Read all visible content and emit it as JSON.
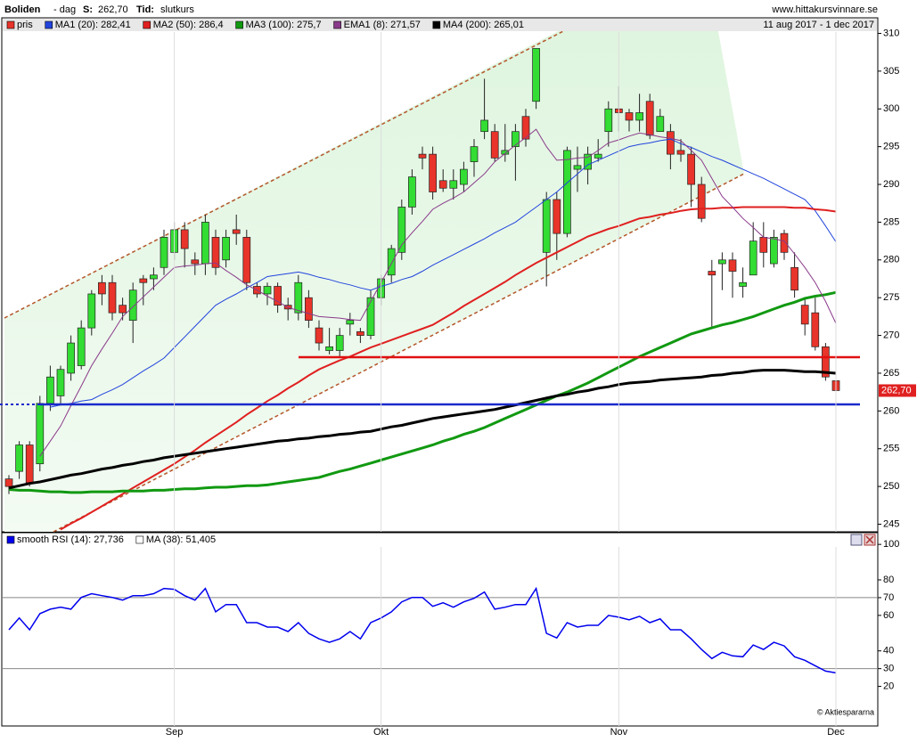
{
  "header": {
    "name": "Boliden",
    "period": "- dag",
    "s_label": "S:",
    "s_value": "262,70",
    "t_label": "Tid:",
    "t_value": "slutkurs",
    "site": "www.hittakursvinnare.se",
    "range": "11 aug 2017 - 1 dec 2017"
  },
  "chart_data": [
    {
      "type": "candlestick",
      "candle_name": "pris",
      "candle_color": "#e8342a",
      "up_color": "#33dd33",
      "down_color": "#e8342a",
      "last_label": "262,70",
      "ylim": [
        244,
        311
      ],
      "yticks": [
        245,
        250,
        255,
        260,
        265,
        270,
        275,
        280,
        285,
        290,
        295,
        300,
        305,
        310
      ],
      "open": [
        251,
        252,
        255.5,
        253,
        261,
        262,
        265,
        266,
        271,
        277,
        277,
        274,
        272,
        277.5,
        277.5,
        279,
        281,
        284,
        280,
        279.5,
        283,
        280,
        284,
        283,
        276.5,
        275.5,
        276.5,
        274,
        273,
        275,
        271,
        268,
        268,
        271.5,
        270.5,
        270,
        275,
        278,
        281,
        287,
        294,
        294,
        290.5,
        289.5,
        290,
        293,
        297,
        297,
        294,
        295,
        299,
        301,
        281,
        288,
        283.5,
        292,
        292,
        293.5,
        297,
        300,
        299.5,
        298.5,
        301,
        297,
        297,
        294.5,
        294,
        290,
        278.5,
        279.5,
        280,
        276.5,
        278,
        283,
        279.5,
        283.5,
        279,
        274,
        273,
        268.5,
        264
      ],
      "high": [
        251.5,
        256,
        256,
        262,
        266,
        266,
        270,
        272,
        276,
        278,
        278,
        275,
        277,
        278,
        279,
        284,
        285,
        285,
        281,
        286,
        284,
        284,
        286,
        284,
        277,
        277,
        277,
        275,
        278,
        276,
        272,
        271,
        271,
        273,
        271,
        276,
        278,
        282,
        288,
        292,
        295,
        295,
        292,
        292,
        293,
        296,
        304,
        298,
        298,
        298,
        300,
        308,
        289,
        289,
        295,
        295,
        295,
        296,
        301,
        303,
        300,
        302,
        302,
        300,
        298,
        296,
        295,
        291,
        280,
        281,
        281,
        279,
        285,
        285,
        284,
        284,
        281,
        275,
        275,
        269,
        266
      ],
      "low": [
        249,
        251,
        250,
        252,
        260,
        261,
        264,
        265.5,
        270,
        274,
        272,
        272,
        269,
        274,
        276,
        278,
        280,
        279,
        278,
        278,
        278,
        279,
        282,
        276,
        275,
        274,
        273,
        272,
        272,
        271,
        268,
        267.5,
        267,
        270,
        269,
        269.5,
        274,
        277,
        280,
        286,
        292,
        288,
        289,
        288,
        289,
        291,
        296,
        293,
        293,
        290.5,
        295,
        300,
        276.5,
        280,
        283,
        289,
        290,
        293,
        295,
        297,
        297,
        297,
        296,
        297,
        292,
        293,
        287,
        285,
        271,
        276,
        275,
        275,
        278,
        279,
        279,
        280,
        275,
        270,
        268,
        264,
        261
      ],
      "close": [
        250,
        255.5,
        250.5,
        261,
        264.5,
        265.5,
        269,
        271,
        275.5,
        275.5,
        273,
        273,
        276,
        277,
        278,
        283,
        284,
        281.5,
        279.5,
        285,
        279,
        283,
        283.5,
        277,
        275.5,
        276.5,
        274,
        273.5,
        277,
        272,
        269,
        268.5,
        270,
        272,
        270,
        275,
        277.5,
        281.5,
        287,
        291,
        293.5,
        289,
        289.5,
        290.5,
        292,
        295,
        298.5,
        293.5,
        294.5,
        297,
        296,
        308,
        288,
        283.5,
        294.5,
        292.5,
        294,
        294,
        300,
        299.5,
        298.5,
        299.5,
        296.5,
        299,
        294,
        294,
        290,
        285.5,
        278,
        280,
        278.5,
        277,
        282.5,
        281,
        283,
        281,
        276,
        271.5,
        268.5,
        264.5,
        262.7
      ],
      "series": [
        {
          "name": "MA1 (20): 282,41",
          "color": "#2244dd",
          "line_width": 1,
          "values": [
            null,
            null,
            null,
            null,
            260.5,
            260.8,
            261.0,
            261.3,
            261.5,
            262.2,
            262.8,
            263.5,
            264.4,
            265.3,
            266.1,
            267.0,
            268.4,
            269.8,
            271.2,
            272.6,
            274.0,
            274.8,
            275.5,
            276.3,
            277.0,
            277.8,
            278.0,
            278.2,
            278.4,
            278.1,
            277.7,
            277.4,
            277.0,
            276.7,
            276.3,
            276.0,
            276.5,
            276.9,
            277.4,
            277.8,
            278.5,
            279.3,
            280.0,
            280.7,
            281.4,
            282.1,
            282.8,
            283.6,
            284.3,
            285.0,
            286.0,
            287.0,
            288.0,
            289.0,
            290.2,
            291.4,
            292.6,
            293.2,
            293.8,
            294.4,
            295.0,
            295.3,
            295.5,
            295.8,
            296.0,
            295.4,
            294.9,
            294.3,
            293.7,
            293.2,
            292.6,
            292.0,
            291.4,
            290.8,
            290.1,
            289.4,
            288.7,
            288.0,
            286.5,
            284.5,
            282.4
          ]
        },
        {
          "name": "MA2 (50): 286,4",
          "color": "#e02020",
          "line_width": 2,
          "values": [
            null,
            null,
            null,
            null,
            null,
            244.3,
            245.1,
            245.8,
            246.6,
            247.4,
            248.2,
            249.0,
            249.8,
            250.6,
            251.4,
            252.2,
            253.0,
            253.9,
            254.8,
            255.8,
            256.7,
            257.6,
            258.5,
            259.5,
            260.4,
            261.3,
            262.1,
            263.0,
            263.8,
            264.7,
            265.5,
            266.1,
            266.7,
            267.2,
            267.8,
            268.4,
            268.9,
            269.4,
            269.9,
            270.4,
            270.9,
            271.4,
            272.2,
            273.0,
            273.9,
            274.7,
            275.5,
            276.3,
            277.1,
            278.0,
            278.8,
            279.6,
            280.3,
            281.0,
            281.7,
            282.4,
            283.1,
            283.6,
            284.1,
            284.5,
            285.0,
            285.5,
            285.7,
            286.0,
            286.2,
            286.5,
            286.7,
            286.8,
            286.8,
            286.9,
            286.9,
            287.0,
            287.0,
            287.0,
            287.0,
            287.0,
            286.9,
            286.9,
            286.7,
            286.6,
            286.4
          ]
        },
        {
          "name": "MA3 (100): 275,7",
          "color": "#119911",
          "line_width": 3,
          "values": [
            249.6,
            249.5,
            249.5,
            249.4,
            249.3,
            249.3,
            249.2,
            249.2,
            249.3,
            249.3,
            249.3,
            249.4,
            249.4,
            249.4,
            249.5,
            249.5,
            249.6,
            249.7,
            249.7,
            249.8,
            249.9,
            249.9,
            250.0,
            250.1,
            250.1,
            250.2,
            250.4,
            250.6,
            250.8,
            251.0,
            251.2,
            251.6,
            252.0,
            252.3,
            252.7,
            253.1,
            253.5,
            253.9,
            254.3,
            254.7,
            255.1,
            255.5,
            256.0,
            256.4,
            256.9,
            257.3,
            257.8,
            258.4,
            259.0,
            259.6,
            260.2,
            260.8,
            261.4,
            262.0,
            262.5,
            263.1,
            263.7,
            264.4,
            265.1,
            265.8,
            266.5,
            267.2,
            267.8,
            268.4,
            269.0,
            269.6,
            270.2,
            270.6,
            271.0,
            271.4,
            271.7,
            272.1,
            272.5,
            273.0,
            273.5,
            274.0,
            274.4,
            274.9,
            275.2,
            275.4,
            275.7
          ]
        },
        {
          "name": "EMA1 (8): 271,57",
          "color": "#8a3a8a",
          "line_width": 1,
          "values": [
            null,
            null,
            null,
            254.0,
            256.0,
            258.0,
            260.7,
            263.3,
            266.0,
            268.2,
            270.3,
            272.5,
            273.8,
            275.1,
            276.4,
            277.7,
            279.0,
            279.2,
            279.3,
            279.5,
            279.6,
            278.6,
            277.7,
            276.7,
            276.0,
            275.2,
            274.5,
            273.7,
            273.3,
            272.9,
            272.5,
            272.4,
            272.3,
            272.1,
            272.0,
            274.5,
            277.0,
            279.5,
            282.0,
            283.6,
            285.1,
            286.7,
            287.5,
            288.2,
            289.0,
            290.2,
            291.4,
            293.0,
            294.1,
            295.2,
            296.2,
            297.3,
            295.0,
            293.2,
            293.3,
            293.5,
            293.6,
            294.5,
            295.5,
            295.9,
            296.4,
            296.8,
            296.6,
            296.3,
            296.1,
            295.8,
            294.5,
            293.2,
            290.8,
            288.4,
            287.0,
            285.5,
            284.3,
            283.0,
            282.8,
            282.5,
            280.8,
            279.0,
            277.0,
            274.5,
            271.6
          ]
        },
        {
          "name": "MA4 (200): 265,01",
          "color": "#000000",
          "line_width": 3,
          "values": [
            249.8,
            250.1,
            250.4,
            250.6,
            250.9,
            251.2,
            251.5,
            251.7,
            252.0,
            252.3,
            252.5,
            252.8,
            253.0,
            253.3,
            253.5,
            253.8,
            254.0,
            254.2,
            254.4,
            254.6,
            254.8,
            255.0,
            255.2,
            255.4,
            255.6,
            255.8,
            256.0,
            256.1,
            256.3,
            256.4,
            256.6,
            256.7,
            256.9,
            257.0,
            257.2,
            257.3,
            257.6,
            257.9,
            258.1,
            258.4,
            258.7,
            259.0,
            259.2,
            259.4,
            259.6,
            259.8,
            260.0,
            260.2,
            260.5,
            260.8,
            261.1,
            261.4,
            261.7,
            262.0,
            262.2,
            262.5,
            262.7,
            263.0,
            263.2,
            263.5,
            263.7,
            263.8,
            263.9,
            264.1,
            264.2,
            264.3,
            264.4,
            264.5,
            264.7,
            264.8,
            265.0,
            265.1,
            265.3,
            265.4,
            265.4,
            265.4,
            265.3,
            265.2,
            265.2,
            265.1,
            265.0
          ]
        }
      ]
    },
    {
      "type": "line",
      "copyright": "© Aktiespararna",
      "categories": [
        null,
        null,
        null,
        null,
        null,
        null,
        null,
        null,
        null,
        null,
        null,
        null,
        null,
        null,
        null,
        null,
        "Sep",
        null,
        null,
        null,
        null,
        null,
        null,
        null,
        null,
        null,
        null,
        null,
        null,
        null,
        null,
        null,
        null,
        null,
        null,
        null,
        "Okt",
        null,
        null,
        null,
        null,
        null,
        null,
        null,
        null,
        null,
        null,
        null,
        null,
        null,
        null,
        null,
        null,
        null,
        null,
        null,
        null,
        null,
        null,
        "Nov",
        null,
        null,
        null,
        null,
        null,
        null,
        null,
        null,
        null,
        null,
        null,
        null,
        null,
        null,
        null,
        null,
        null,
        null,
        null,
        null,
        "Dec"
      ],
      "ylim": [
        -2.3,
        106.6
      ],
      "yticks": [
        20,
        30,
        40,
        60,
        70,
        80,
        100
      ],
      "ref_lines": [
        30,
        70
      ],
      "legend_extra": [
        {
          "name": "MA (38): 51,405",
          "color": "#ffffff"
        }
      ],
      "series": [
        {
          "name": "smooth RSI (14): 27,736",
          "color": "#0000ee",
          "values": [
            51.9,
            58.5,
            51.9,
            61.0,
            63.5,
            64.6,
            63.5,
            70.1,
            72.2,
            71.1,
            70.1,
            68.6,
            71.1,
            71.1,
            72.2,
            75.2,
            74.7,
            71.1,
            68.6,
            75.2,
            62.0,
            66.1,
            66.1,
            55.9,
            55.9,
            53.4,
            53.4,
            50.9,
            55.9,
            49.9,
            46.8,
            44.8,
            46.8,
            50.9,
            46.8,
            55.9,
            58.5,
            62.0,
            67.6,
            70.1,
            70.1,
            65.1,
            67.1,
            64.6,
            67.6,
            69.6,
            73.2,
            63.5,
            64.6,
            66.1,
            66.1,
            75.2,
            49.9,
            47.3,
            55.9,
            53.4,
            54.4,
            54.4,
            60.0,
            59.0,
            57.5,
            59.5,
            55.9,
            58.0,
            51.9,
            51.9,
            46.8,
            40.8,
            35.7,
            39.2,
            37.2,
            36.7,
            43.3,
            40.8,
            44.8,
            42.8,
            36.7,
            34.7,
            31.6,
            28.6,
            27.6
          ]
        }
      ]
    }
  ]
}
